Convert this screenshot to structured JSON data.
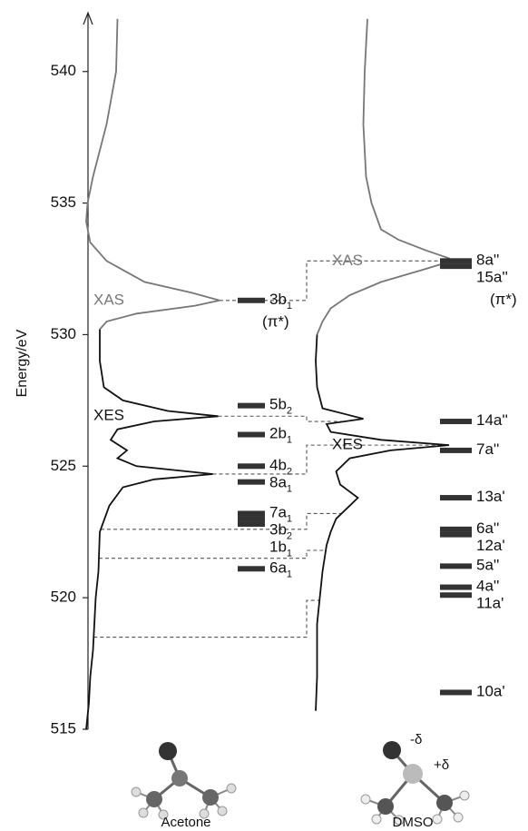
{
  "chart_data": {
    "type": "energy-levels",
    "ylabel": "Energy/eV",
    "ylim": [
      515,
      542.2
    ],
    "yticks": [
      515,
      520,
      525,
      530,
      535,
      540
    ],
    "level_color": "#333333",
    "panels": [
      {
        "name": "Acetone",
        "spectra": [
          {
            "name": "XAS",
            "color": "#777777",
            "energy": [
              542,
              540,
              538,
              536,
              535,
              534.3,
              533.5,
              532.8,
              532.0,
              531.6,
              531.3,
              531.1,
              530.8,
              530.5,
              530.2
            ],
            "intensity": [
              0.23,
              0.22,
              0.15,
              0.05,
              0.01,
              0,
              0.03,
              0.15,
              0.43,
              0.77,
              0.98,
              0.8,
              0.37,
              0.15,
              0.1
            ]
          },
          {
            "name": "XES",
            "color": "#111111",
            "energy": [
              530.2,
              529,
              528,
              527.5,
              527.1,
              526.9,
              526.7,
              526.4,
              526,
              525.6,
              525.3,
              525.0,
              524.7,
              524.5,
              524.2,
              523.5,
              522.5,
              521,
              520,
              519,
              518,
              517,
              516,
              515
            ],
            "intensity": [
              0.1,
              0.1,
              0.13,
              0.27,
              0.6,
              0.97,
              0.5,
              0.23,
              0.18,
              0.3,
              0.23,
              0.37,
              0.93,
              0.5,
              0.27,
              0.17,
              0.1,
              0.09,
              0.07,
              0.06,
              0.05,
              0.03,
              0.02,
              0
            ]
          }
        ],
        "levels": [
          {
            "label": "3b",
            "sub": "1",
            "energy": 531.3,
            "note": "(π*)"
          },
          {
            "label": "5b",
            "sub": "2",
            "energy": 527.3
          },
          {
            "label": "2b",
            "sub": "1",
            "energy": 526.2
          },
          {
            "label": "4b",
            "sub": "2",
            "energy": 525.0
          },
          {
            "label": "8a",
            "sub": "1",
            "energy": 524.4
          },
          {
            "label": "7a",
            "sub": "1",
            "energy": 523.2
          },
          {
            "label": "3b",
            "sub": "2",
            "energy": 523.0
          },
          {
            "label": "1b",
            "sub": "1",
            "energy": 522.8
          },
          {
            "label": "6a",
            "sub": "1",
            "energy": 521.1
          }
        ],
        "charges": []
      },
      {
        "name": "DMSO",
        "spectra": [
          {
            "name": "XAS",
            "color": "#777777",
            "energy": [
              542,
              540,
              538,
              536,
              535,
              534,
              533.6,
              533.2,
              532.9,
              532.8,
              532.5,
              532.0,
              531.5,
              531,
              530.5,
              530
            ],
            "intensity": [
              0.4,
              0.38,
              0.37,
              0.39,
              0.43,
              0.5,
              0.63,
              0.83,
              1.0,
              1.02,
              0.83,
              0.5,
              0.27,
              0.13,
              0.07,
              0.03
            ]
          },
          {
            "name": "XES",
            "color": "#111111",
            "energy": [
              530,
              529,
              528,
              527.2,
              526.8,
              526.6,
              526.3,
              526,
              525.8,
              525.6,
              525.3,
              524.8,
              524.3,
              523.8,
              523.5,
              523,
              522.5,
              522,
              521,
              520,
              519,
              518,
              517,
              515.7
            ],
            "intensity": [
              0.03,
              0.02,
              0.03,
              0.07,
              0.37,
              0.1,
              0.13,
              0.5,
              1.0,
              0.57,
              0.27,
              0.17,
              0.2,
              0.33,
              0.27,
              0.17,
              0.13,
              0.1,
              0.07,
              0.05,
              0.03,
              0.03,
              0.03,
              0.02
            ]
          }
        ],
        "levels": [
          {
            "label": "8a''",
            "energy": 532.8
          },
          {
            "label": "15a''",
            "energy": 532.6,
            "note": "(π*)"
          },
          {
            "label": "14a''",
            "energy": 526.7
          },
          {
            "label": "7a''",
            "energy": 525.6
          },
          {
            "label": "13a'",
            "energy": 523.8
          },
          {
            "label": "6a''",
            "energy": 522.6
          },
          {
            "label": "12a'",
            "energy": 522.4
          },
          {
            "label": "5a''",
            "energy": 521.2
          },
          {
            "label": "4a''",
            "energy": 520.4
          },
          {
            "label": "11a'",
            "energy": 520.1
          },
          {
            "label": "10a'",
            "energy": 516.4
          }
        ],
        "charges": [
          "-δ",
          "+δ"
        ]
      }
    ],
    "correlations": [
      {
        "from": 531.3,
        "to": 532.8
      },
      {
        "from": 526.9,
        "to": 526.7
      },
      {
        "from": 524.7,
        "to": 525.8
      },
      {
        "from": 522.6,
        "to": 523.2
      },
      {
        "from": 521.5,
        "to": 521.8
      },
      {
        "from": 518.5,
        "to": 519.9
      }
    ]
  }
}
